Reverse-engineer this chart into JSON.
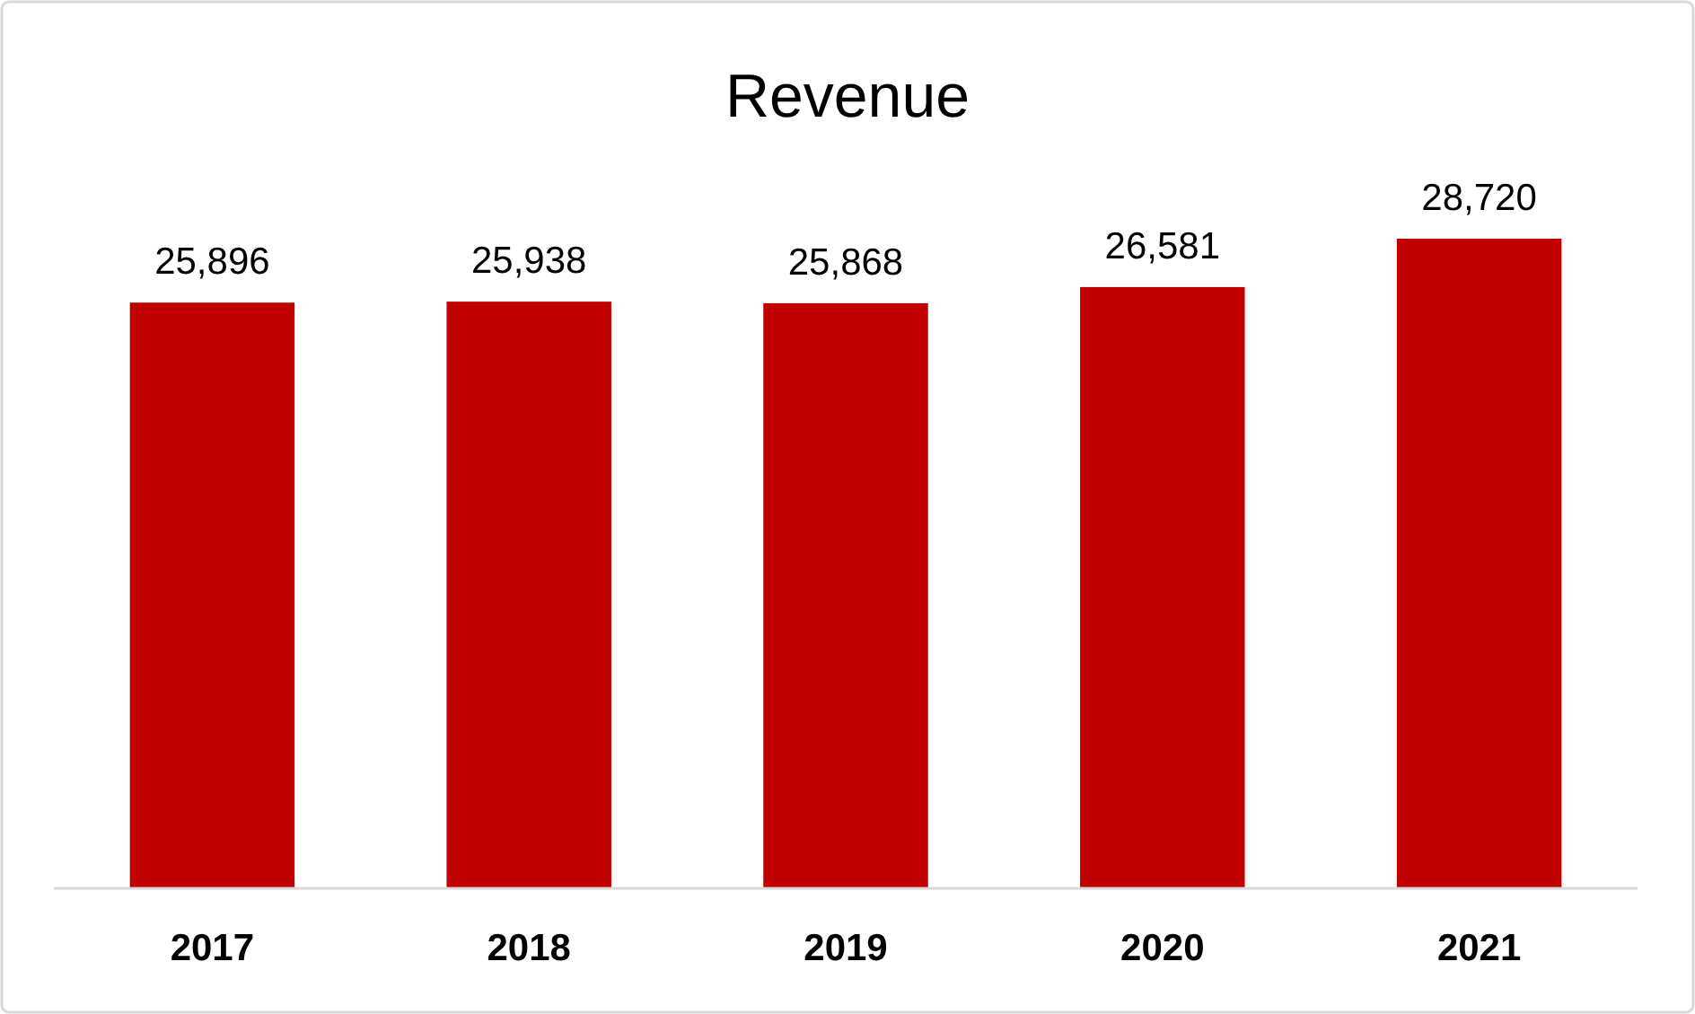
{
  "chart_data": {
    "type": "bar",
    "title": "Revenue",
    "categories": [
      "2017",
      "2018",
      "2019",
      "2020",
      "2021"
    ],
    "values": [
      25896,
      25938,
      25868,
      26581,
      28720
    ],
    "value_labels": [
      "25,896",
      "25,938",
      "25,868",
      "26,581",
      "28,720"
    ],
    "color": "#c00000",
    "tick_labels": "x"
  }
}
